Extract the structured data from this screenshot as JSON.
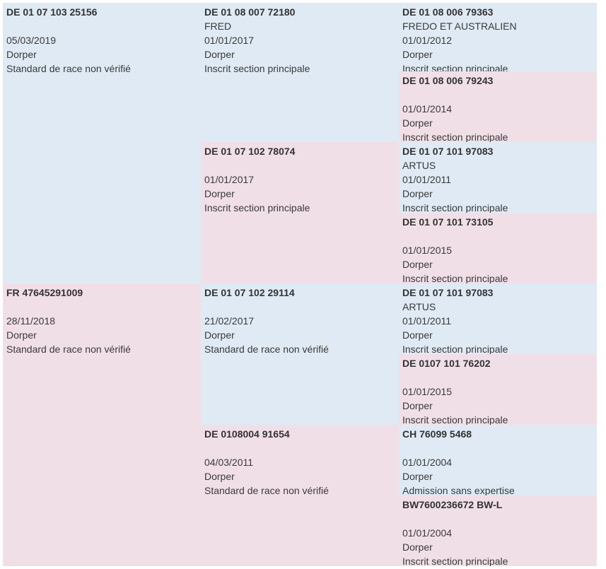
{
  "colors": {
    "male": "#dfeaf4",
    "female": "#f1dfe8"
  },
  "pedigree": {
    "sire": {
      "id": "DE 01 07 103 25156",
      "name": "",
      "date": "05/03/2019",
      "breed": "Dorper",
      "status": "Standard de race non vérifié"
    },
    "dam": {
      "id": "FR 47645291009",
      "name": "",
      "date": "28/11/2018",
      "breed": "Dorper",
      "status": "Standard de race non vérifié"
    },
    "sire_sire": {
      "id": "DE 01 08 007 72180",
      "name": "FRED",
      "date": "01/01/2017",
      "breed": "Dorper",
      "status": "Inscrit section principale"
    },
    "sire_dam": {
      "id": "DE 01 07 102 78074",
      "name": "",
      "date": "01/01/2017",
      "breed": "Dorper",
      "status": "Inscrit section principale"
    },
    "dam_sire": {
      "id": "DE 01 07 102 29114",
      "name": "",
      "date": "21/02/2017",
      "breed": "Dorper",
      "status": "Standard de race non vérifié"
    },
    "dam_dam": {
      "id": "DE 0108004 91654",
      "name": "",
      "date": "04/03/2011",
      "breed": "Dorper",
      "status": "Standard de race non vérifié"
    },
    "g1": {
      "id": "DE 01 08 006 79363",
      "name": "FREDO ET AUSTRALIEN",
      "date": "01/01/2012",
      "breed": "Dorper",
      "status": "Inscrit section principale"
    },
    "g2": {
      "id": "DE 01 08 006 79243",
      "name": "",
      "date": "01/01/2014",
      "breed": "Dorper",
      "status": "Inscrit section principale"
    },
    "g3": {
      "id": "DE 01 07 101 97083",
      "name": "ARTUS",
      "date": "01/01/2011",
      "breed": "Dorper",
      "status": "Inscrit section principale"
    },
    "g4": {
      "id": "DE 01 07 101 73105",
      "name": "",
      "date": "01/01/2015",
      "breed": "Dorper",
      "status": "Inscrit section principale"
    },
    "g5": {
      "id": "DE 01 07 101 97083",
      "name": "ARTUS",
      "date": "01/01/2011",
      "breed": "Dorper",
      "status": "Inscrit section principale"
    },
    "g6": {
      "id": "DE 0107 101 76202",
      "name": "",
      "date": "01/01/2015",
      "breed": "Dorper",
      "status": "Inscrit section principale"
    },
    "g7": {
      "id": "CH 76099 5468",
      "name": "",
      "date": "01/01/2004",
      "breed": "Dorper",
      "status": "Admission sans expertise"
    },
    "g8": {
      "id": "BW7600236672 BW-L",
      "name": "",
      "date": "01/01/2004",
      "breed": "Dorper",
      "status": "Inscrit section principale"
    }
  }
}
